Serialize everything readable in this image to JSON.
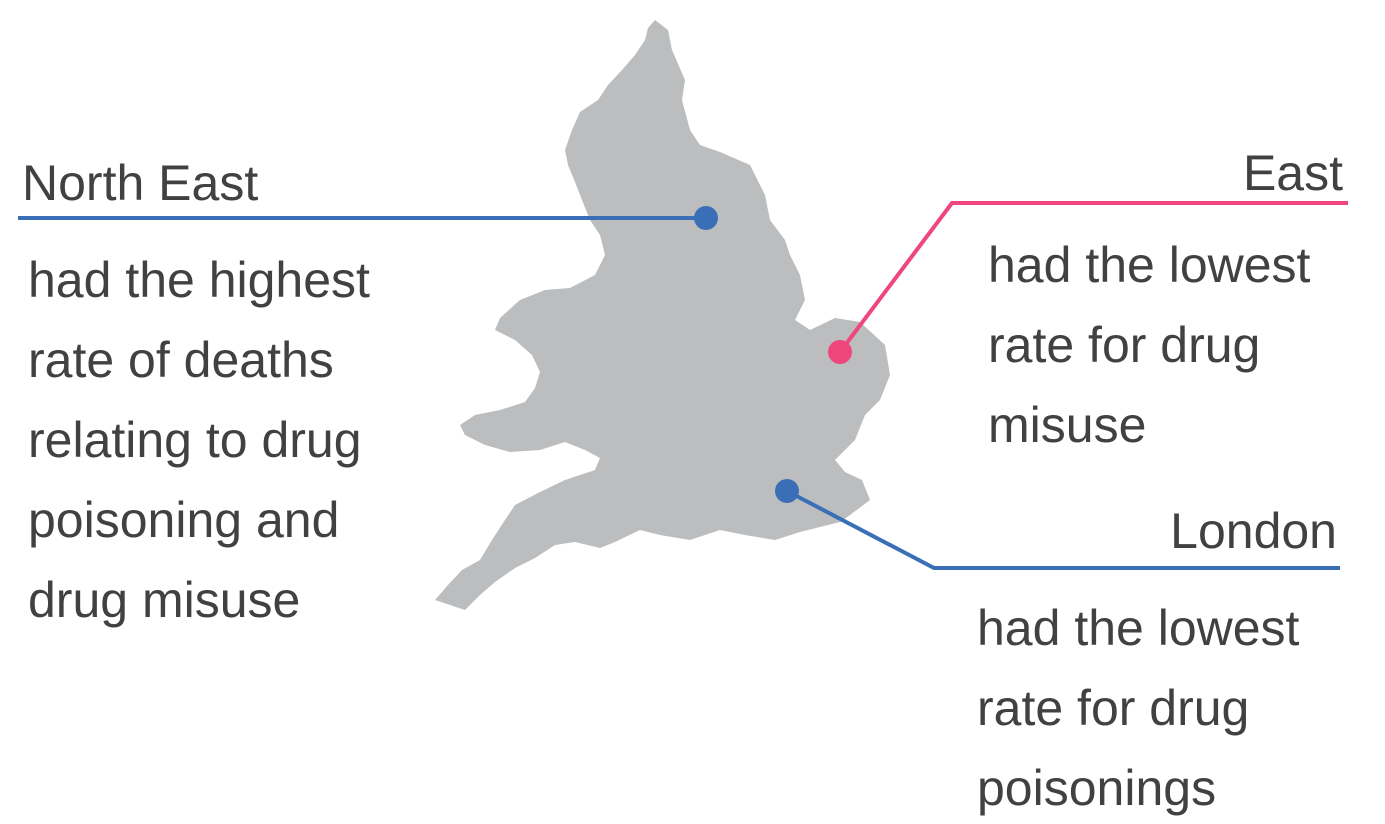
{
  "callouts": [
    {
      "region": "North East",
      "lines": [
        "had the highest",
        "rate of deaths",
        "relating to drug",
        "poisoning and",
        "drug misuse"
      ]
    },
    {
      "region": "East",
      "lines": [
        "had the lowest",
        "rate for drug",
        "misuse"
      ]
    },
    {
      "region": "London",
      "lines": [
        "had the lowest",
        "rate for drug",
        "poisonings"
      ]
    }
  ]
}
